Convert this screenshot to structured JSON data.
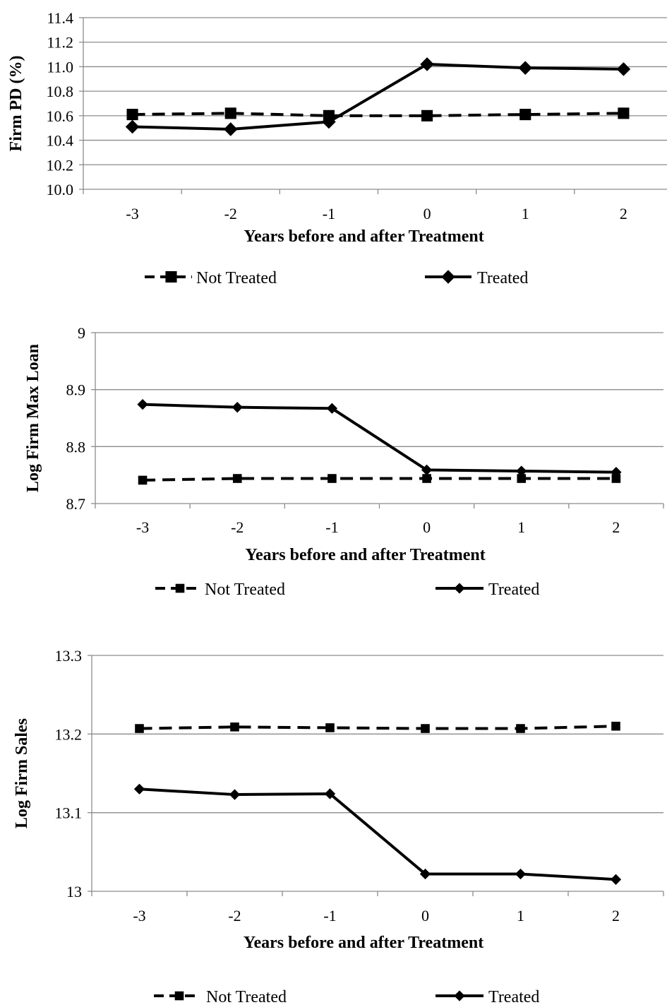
{
  "chart_data": [
    {
      "type": "line",
      "title": "",
      "xlabel": "Years before and after Treatment",
      "ylabel": "Firm PD (%)",
      "categories": [
        "-3",
        "-2",
        "-1",
        "0",
        "1",
        "2"
      ],
      "ylim": [
        10.0,
        11.4
      ],
      "yticks": [
        "10.0",
        "10.2",
        "10.4",
        "10.6",
        "10.8",
        "11.0",
        "11.2",
        "11.4"
      ],
      "grid": "horizontal",
      "legend": "bottom",
      "series": [
        {
          "name": "Not Treated",
          "style": "dashed",
          "marker": "square",
          "values": [
            10.61,
            10.62,
            10.6,
            10.6,
            10.61,
            10.62
          ]
        },
        {
          "name": "Treated",
          "style": "solid",
          "marker": "diamond",
          "values": [
            10.51,
            10.49,
            10.55,
            11.02,
            10.99,
            10.98
          ]
        }
      ]
    },
    {
      "type": "line",
      "title": "",
      "xlabel": "Years before and after Treatment",
      "ylabel": "Log Firm  Max Loan",
      "categories": [
        "-3",
        "-2",
        "-1",
        "0",
        "1",
        "2"
      ],
      "ylim": [
        8.7,
        9.0
      ],
      "yticks": [
        "8.7",
        "8.8",
        "8.9",
        "9"
      ],
      "grid": "horizontal",
      "legend": "bottom",
      "series": [
        {
          "name": "Not Treated",
          "style": "dashed",
          "marker": "square",
          "values": [
            8.741,
            8.744,
            8.744,
            8.744,
            8.744,
            8.744
          ]
        },
        {
          "name": "Treated",
          "style": "solid",
          "marker": "diamond",
          "values": [
            8.874,
            8.869,
            8.867,
            8.759,
            8.757,
            8.755
          ]
        }
      ]
    },
    {
      "type": "line",
      "title": "",
      "xlabel": "Years before and after Treatment",
      "ylabel": "Log Firm Sales",
      "categories": [
        "-3",
        "-2",
        "-1",
        "0",
        "1",
        "2"
      ],
      "ylim": [
        13.0,
        13.3
      ],
      "yticks": [
        "13",
        "13.1",
        "13.2",
        "13.3"
      ],
      "grid": "horizontal",
      "legend": "bottom",
      "series": [
        {
          "name": "Not Treated",
          "style": "dashed",
          "marker": "square",
          "values": [
            13.207,
            13.209,
            13.208,
            13.207,
            13.207,
            13.21
          ]
        },
        {
          "name": "Treated",
          "style": "solid",
          "marker": "diamond",
          "values": [
            13.13,
            13.123,
            13.124,
            13.022,
            13.022,
            13.015
          ]
        }
      ]
    }
  ]
}
